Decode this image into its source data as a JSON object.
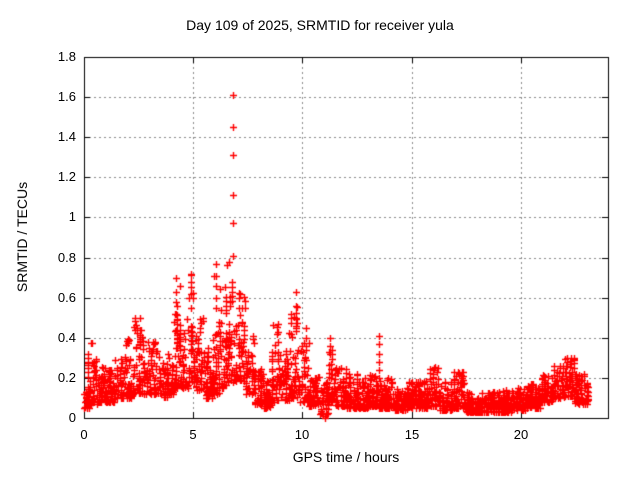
{
  "chart_data": {
    "type": "scatter",
    "title": "Day 109 of 2025, SRMTID for receiver yula",
    "xlabel": "GPS time / hours",
    "ylabel": "SRMTID / TECUs",
    "xlim": [
      0,
      24
    ],
    "ylim": [
      0,
      1.8
    ],
    "xticks": {
      "values": [
        0,
        5,
        10,
        15,
        20
      ],
      "labels": [
        "0",
        "5",
        "10",
        "15",
        "20"
      ]
    },
    "yticks": {
      "values": [
        0,
        0.2,
        0.4,
        0.6,
        0.8,
        1.0,
        1.2,
        1.4,
        1.6,
        1.8
      ],
      "labels": [
        "0",
        "0.2",
        "0.4",
        "0.6",
        "0.8",
        "1",
        "1.2",
        "1.4",
        "1.6",
        "1.8"
      ]
    },
    "grid": true,
    "grid_style": "dotted",
    "grid_color": "#8a8a8a",
    "border_color": "#000000",
    "legend": "none",
    "series": [
      {
        "name": "SRMTID",
        "marker": "plus",
        "color": "#ff0000"
      }
    ],
    "band_envelope_comment": "dense scatter band read off the plot: [x_start_hr, x_end_hr, y_min_TECU, y_max_TECU]",
    "band_envelope": [
      [
        0.0,
        0.3,
        0.05,
        0.32
      ],
      [
        0.3,
        0.6,
        0.07,
        0.38
      ],
      [
        0.6,
        1.0,
        0.08,
        0.26
      ],
      [
        1.0,
        1.4,
        0.08,
        0.24
      ],
      [
        1.4,
        1.8,
        0.1,
        0.3
      ],
      [
        1.8,
        2.2,
        0.1,
        0.42
      ],
      [
        2.2,
        2.6,
        0.12,
        0.5
      ],
      [
        2.6,
        3.0,
        0.12,
        0.46
      ],
      [
        3.0,
        3.4,
        0.12,
        0.38
      ],
      [
        3.4,
        3.8,
        0.1,
        0.32
      ],
      [
        3.8,
        4.1,
        0.12,
        0.38
      ],
      [
        4.1,
        4.5,
        0.15,
        0.7
      ],
      [
        4.5,
        4.8,
        0.15,
        0.5
      ],
      [
        4.8,
        5.1,
        0.18,
        0.72
      ],
      [
        5.1,
        5.5,
        0.14,
        0.5
      ],
      [
        5.5,
        5.9,
        0.1,
        0.35
      ],
      [
        5.9,
        6.2,
        0.12,
        0.73
      ],
      [
        6.2,
        6.5,
        0.15,
        0.66
      ],
      [
        6.5,
        7.0,
        0.18,
        0.78
      ],
      [
        7.0,
        7.4,
        0.18,
        0.65
      ],
      [
        7.4,
        7.8,
        0.12,
        0.42
      ],
      [
        7.8,
        8.2,
        0.07,
        0.25
      ],
      [
        8.2,
        8.6,
        0.05,
        0.2
      ],
      [
        8.6,
        9.0,
        0.08,
        0.47
      ],
      [
        9.0,
        9.4,
        0.09,
        0.4
      ],
      [
        9.4,
        9.8,
        0.1,
        0.6
      ],
      [
        9.8,
        10.3,
        0.08,
        0.45
      ],
      [
        10.3,
        10.8,
        0.06,
        0.22
      ],
      [
        10.8,
        11.2,
        0.02,
        0.18
      ],
      [
        11.2,
        11.5,
        0.08,
        0.4
      ],
      [
        11.5,
        12.0,
        0.06,
        0.28
      ],
      [
        12.0,
        12.5,
        0.05,
        0.22
      ],
      [
        12.5,
        13.0,
        0.05,
        0.2
      ],
      [
        13.0,
        13.4,
        0.06,
        0.22
      ],
      [
        13.4,
        14.2,
        0.05,
        0.2
      ],
      [
        14.2,
        14.8,
        0.04,
        0.15
      ],
      [
        14.8,
        15.4,
        0.05,
        0.18
      ],
      [
        15.4,
        15.8,
        0.05,
        0.2
      ],
      [
        15.8,
        16.3,
        0.06,
        0.26
      ],
      [
        16.3,
        16.9,
        0.04,
        0.18
      ],
      [
        16.9,
        17.5,
        0.05,
        0.23
      ],
      [
        17.5,
        18.2,
        0.03,
        0.14
      ],
      [
        18.2,
        19.0,
        0.03,
        0.13
      ],
      [
        19.0,
        19.6,
        0.03,
        0.14
      ],
      [
        19.6,
        20.2,
        0.04,
        0.15
      ],
      [
        20.2,
        20.9,
        0.05,
        0.17
      ],
      [
        20.9,
        21.5,
        0.08,
        0.22
      ],
      [
        21.5,
        22.0,
        0.1,
        0.26
      ],
      [
        22.0,
        22.5,
        0.11,
        0.3
      ],
      [
        22.5,
        23.1,
        0.07,
        0.22
      ]
    ],
    "outlier_columns_comment": "isolated vertical runs of + markers read off the plot",
    "outlier_columns": [
      {
        "x": 6.82,
        "values": [
          0.81,
          0.97,
          1.11,
          1.31,
          1.45,
          1.61
        ]
      },
      {
        "x": 6.05,
        "values": [
          0.55,
          0.6,
          0.66,
          0.71,
          0.77
        ]
      },
      {
        "x": 4.22,
        "values": [
          0.52,
          0.58,
          0.63,
          0.7
        ]
      },
      {
        "x": 4.92,
        "values": [
          0.55,
          0.62,
          0.68,
          0.72
        ]
      },
      {
        "x": 9.7,
        "values": [
          0.45,
          0.5,
          0.56,
          0.63
        ]
      },
      {
        "x": 13.52,
        "values": [
          0.2,
          0.24,
          0.28,
          0.32,
          0.37,
          0.41
        ]
      },
      {
        "x": 11.25,
        "values": [
          0.32,
          0.36,
          0.4
        ]
      },
      {
        "x": 11.02,
        "values": [
          0.0,
          0.01
        ]
      },
      {
        "x": 10.15,
        "values": [
          0.36,
          0.4,
          0.45
        ]
      },
      {
        "x": 8.9,
        "values": [
          0.33,
          0.38,
          0.43,
          0.47
        ]
      },
      {
        "x": 2.32,
        "values": [
          0.44,
          0.5
        ]
      },
      {
        "x": 17.3,
        "values": [
          0.2,
          0.23
        ]
      },
      {
        "x": 22.3,
        "values": [
          0.27,
          0.3
        ]
      }
    ],
    "density_points_per_hour": 85,
    "streak_probability": 0.18,
    "seed": 7
  }
}
